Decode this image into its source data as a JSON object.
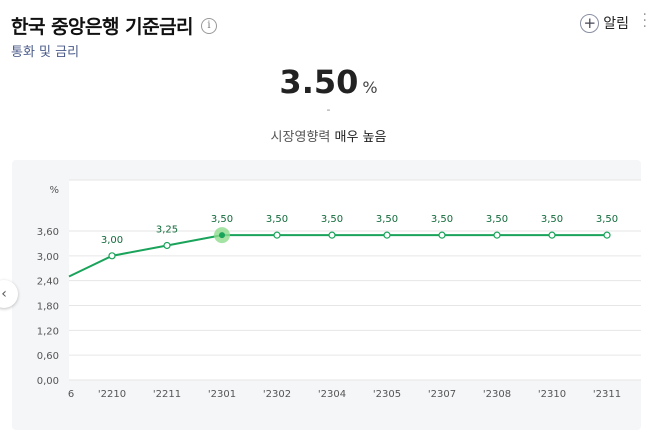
{
  "header": {
    "title": "한국 중앙은행 기준금리",
    "subtitle": "통화 및 금리",
    "alert_label": "알림"
  },
  "main": {
    "value": "3.50",
    "unit": "%",
    "change": "-",
    "impact_label": "시장영향력",
    "impact_value": "매우 높음"
  },
  "colors": {
    "line": "#1aa35a",
    "highlight": "#8fdc8f"
  },
  "chart_data": {
    "type": "line",
    "ylabel": "%",
    "ylim": [
      0,
      3.6
    ],
    "yticks": [
      "0,00",
      "0,60",
      "1,20",
      "1,80",
      "2,40",
      "3,00",
      "3,60"
    ],
    "categories": [
      "'2210",
      "'2211",
      "'2301",
      "'2302",
      "'2304",
      "'2305",
      "'2307",
      "'2308",
      "'2310",
      "'2311"
    ],
    "first_tick_partial": "6",
    "values": [
      3.0,
      3.25,
      3.5,
      3.5,
      3.5,
      3.5,
      3.5,
      3.5,
      3.5,
      3.5
    ],
    "data_labels": [
      "3,00",
      "3,25",
      "3,50",
      "3,50",
      "3,50",
      "3,50",
      "3,50",
      "3,50",
      "3,50",
      "3,50"
    ],
    "lead_in_value": 2.5,
    "highlight_index": 2
  }
}
